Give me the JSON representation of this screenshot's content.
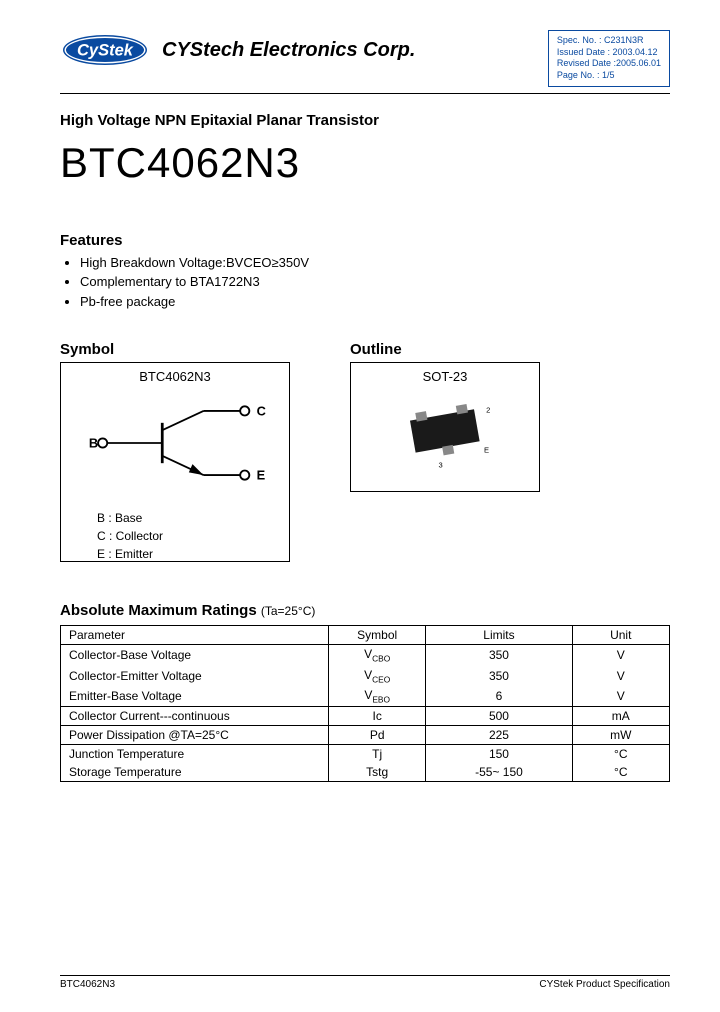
{
  "header": {
    "company": "CYStech Electronics Corp.",
    "logo": {
      "text": "CyStek",
      "fill": "#0a4aa0",
      "stroke": "#0a4aa0"
    },
    "spec": {
      "spec_no": "Spec. No. : C231N3R",
      "issued": "Issued Date : 2003.04.12",
      "revised": "Revised Date :2005.06.01",
      "page_no": "Page No. : 1/5"
    }
  },
  "subtitle": "High Voltage NPN Epitaxial Planar Transistor",
  "part_number": "BTC4062N3",
  "features": {
    "title": "Features",
    "items": [
      "High Breakdown Voltage:BVCEO≥350V",
      "Complementary to BTA1722N3",
      "Pb-free package"
    ]
  },
  "symbol": {
    "title": "Symbol",
    "label": "BTC4062N3",
    "pins": {
      "b": "B",
      "c": "C",
      "e": "E"
    },
    "legend": [
      "B : Base",
      "C : Collector",
      "E : Emitter"
    ]
  },
  "outline": {
    "title": "Outline",
    "package": "SOT-23",
    "body_color": "#1a1a1a"
  },
  "ratings": {
    "title": "Absolute Maximum Ratings",
    "condition": "(Ta=25°C)",
    "columns": [
      "Parameter",
      "Symbol",
      "Limits",
      "Unit"
    ],
    "rows": [
      {
        "p": "Collector-Base Voltage",
        "s": "V",
        "sub": "CBO",
        "l": "350",
        "u": "V",
        "group_top": true
      },
      {
        "p": "Collector-Emitter Voltage",
        "s": "V",
        "sub": "CEO",
        "l": "350",
        "u": "V"
      },
      {
        "p": "Emitter-Base Voltage",
        "s": "V",
        "sub": "EBO",
        "l": "6",
        "u": "V"
      },
      {
        "p": "Collector Current---continuous",
        "s": "Ic",
        "sub": "",
        "l": "500",
        "u": "mA",
        "group_top": true
      },
      {
        "p": "Power Dissipation @TA=25°C",
        "s": "Pd",
        "sub": "",
        "l": "225",
        "u": "mW",
        "group_top": true
      },
      {
        "p": "Junction Temperature",
        "s": "Tj",
        "sub": "",
        "l": "150",
        "u": "°C",
        "group_top": true
      },
      {
        "p": "Storage Temperature",
        "s": "Tstg",
        "sub": "",
        "l": "-55~ 150",
        "u": "°C"
      }
    ]
  },
  "footer": {
    "left": "BTC4062N3",
    "right": "CYStek Product Specification"
  }
}
